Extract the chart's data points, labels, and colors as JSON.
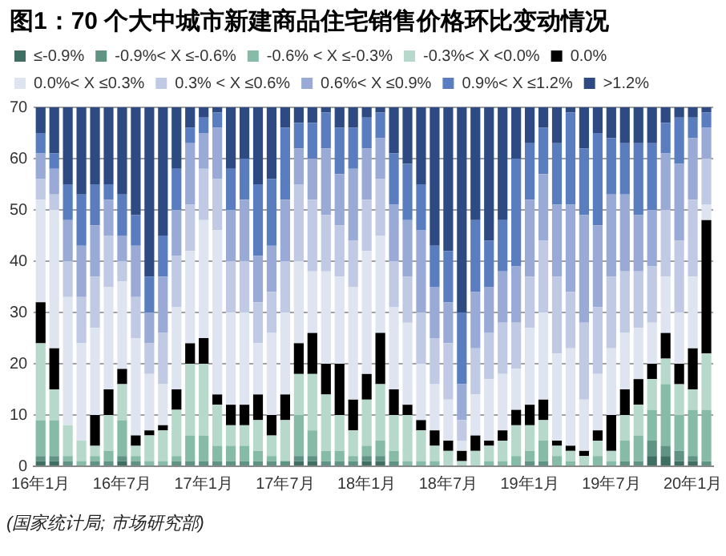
{
  "chart_data": {
    "type": "bar",
    "title": "图1：70 个大中城市新建商品住宅销售价格环比变动情况",
    "stacked": true,
    "grid": "y",
    "legend": "top",
    "ylim": [
      0,
      70
    ],
    "yticks": [
      0,
      10,
      20,
      30,
      40,
      50,
      60,
      70
    ],
    "categories": [
      "16年1月",
      null,
      null,
      null,
      null,
      null,
      "16年7月",
      null,
      null,
      null,
      null,
      null,
      "17年1月",
      null,
      null,
      null,
      null,
      null,
      "17年7月",
      null,
      null,
      null,
      null,
      null,
      "18年1月",
      null,
      null,
      null,
      null,
      null,
      "18年7月",
      null,
      null,
      null,
      null,
      null,
      "19年1月",
      null,
      null,
      null,
      null,
      null,
      "19年7月",
      null,
      null,
      null,
      null,
      null,
      "20年1月",
      null
    ],
    "series": [
      {
        "name": "≤-0.9%",
        "color": "#3f6e62",
        "values": [
          1,
          1,
          0,
          0,
          0,
          0,
          1,
          0,
          0,
          0,
          0,
          0,
          0,
          0,
          0,
          0,
          0,
          0,
          0,
          1,
          1,
          0,
          0,
          0,
          1,
          1,
          0,
          0,
          0,
          0,
          0,
          0,
          0,
          0,
          0,
          0,
          0,
          0,
          0,
          0,
          0,
          0,
          0,
          0,
          0,
          2,
          2,
          1,
          1,
          0
        ]
      },
      {
        "name": "-0.9%< X ≤-0.6%",
        "color": "#5f9484",
        "values": [
          1,
          1,
          1,
          0,
          1,
          1,
          1,
          1,
          0,
          0,
          1,
          1,
          1,
          1,
          1,
          1,
          1,
          1,
          1,
          1,
          1,
          1,
          1,
          1,
          1,
          1,
          1,
          0,
          0,
          0,
          0,
          0,
          0,
          0,
          0,
          0,
          1,
          1,
          0,
          0,
          0,
          0,
          0,
          1,
          1,
          3,
          2,
          2,
          1,
          1
        ]
      },
      {
        "name": "-0.6% < X ≤-0.3%",
        "color": "#86bba8",
        "values": [
          7,
          7,
          1,
          1,
          1,
          2,
          7,
          1,
          1,
          1,
          1,
          5,
          5,
          3,
          3,
          3,
          2,
          1,
          0,
          8,
          5,
          2,
          2,
          1,
          2,
          3,
          2,
          1,
          1,
          1,
          0,
          0,
          0,
          1,
          1,
          2,
          2,
          4,
          2,
          1,
          0,
          2,
          1,
          4,
          5,
          6,
          12,
          7,
          9,
          10
        ]
      },
      {
        "name": "-0.3%< X <0.0%",
        "color": "#b6d9cb",
        "values": [
          15,
          6,
          6,
          4,
          2,
          7,
          7,
          2,
          5,
          6,
          9,
          14,
          14,
          8,
          4,
          4,
          6,
          4,
          8,
          8,
          11,
          11,
          7,
          5,
          9,
          11,
          7,
          9,
          6,
          3,
          3,
          1,
          3,
          3,
          4,
          6,
          5,
          4,
          2,
          2,
          2,
          3,
          2,
          5,
          6,
          6,
          5,
          6,
          4,
          11
        ]
      },
      {
        "name": "0.0%",
        "color": "#000000",
        "values": [
          8,
          8,
          0,
          0,
          6,
          5,
          3,
          2,
          1,
          1,
          4,
          4,
          5,
          2,
          4,
          4,
          5,
          4,
          5,
          6,
          8,
          6,
          10,
          6,
          5,
          10,
          5,
          2,
          2,
          3,
          2,
          2,
          3,
          1,
          2,
          3,
          4,
          4,
          1,
          1,
          1,
          2,
          7,
          5,
          5,
          3,
          5,
          4,
          8,
          26
        ]
      },
      {
        "name": "0.0%< X ≤0.3%",
        "color": "#dfe4f1",
        "values": [
          20,
          27,
          25,
          19,
          17,
          20,
          17,
          19,
          11,
          8,
          16,
          18,
          23,
          32,
          18,
          18,
          10,
          16,
          16,
          16,
          12,
          18,
          17,
          22,
          24,
          19,
          16,
          16,
          11,
          9,
          8,
          2,
          8,
          12,
          11,
          8,
          15,
          17,
          17,
          19,
          10,
          11,
          13,
          11,
          10,
          8,
          11,
          10,
          14,
          3
        ]
      },
      {
        "name": "0.3% < X ≤0.6%",
        "color": "#c1cae4",
        "values": [
          4,
          3,
          7,
          9,
          10,
          10,
          4,
          8,
          6,
          10,
          10,
          9,
          10,
          10,
          10,
          10,
          8,
          8,
          10,
          15,
          14,
          11,
          10,
          9,
          10,
          11,
          9,
          9,
          10,
          9,
          11,
          4,
          9,
          9,
          10,
          9,
          10,
          14,
          15,
          11,
          15,
          13,
          14,
          12,
          11,
          11,
          13,
          14,
          15,
          9
        ]
      },
      {
        "name": "0.6%< X ≤0.9%",
        "color": "#98aad5",
        "values": [
          5,
          5,
          8,
          10,
          10,
          7,
          5,
          10,
          6,
          11,
          9,
          12,
          7,
          10,
          10,
          12,
          9,
          9,
          12,
          7,
          8,
          13,
          10,
          14,
          10,
          8,
          11,
          11,
          16,
          10,
          8,
          7,
          11,
          9,
          10,
          11,
          15,
          13,
          14,
          17,
          21,
          16,
          16,
          15,
          11,
          11,
          11,
          15,
          12,
          6
        ]
      },
      {
        "name": "0.9%< X ≤1.2%",
        "color": "#5a7dc0",
        "values": [
          4,
          3,
          7,
          10,
          8,
          3,
          8,
          6,
          7,
          8,
          8,
          3,
          3,
          3,
          8,
          8,
          14,
          13,
          14,
          5,
          7,
          7,
          9,
          8,
          6,
          5,
          10,
          11,
          9,
          8,
          10,
          14,
          14,
          9,
          10,
          21,
          11,
          9,
          12,
          18,
          13,
          18,
          11,
          10,
          14,
          13,
          6,
          9,
          4,
          3
        ]
      },
      {
        "name": ">1.2%",
        "color": "#2e4a82",
        "values": [
          5,
          9,
          15,
          17,
          15,
          15,
          17,
          21,
          33,
          25,
          12,
          4,
          2,
          1,
          12,
          10,
          15,
          14,
          4,
          3,
          3,
          1,
          4,
          4,
          2,
          1,
          9,
          11,
          15,
          27,
          28,
          40,
          22,
          26,
          22,
          10,
          7,
          4,
          7,
          1,
          8,
          5,
          6,
          7,
          7,
          7,
          3,
          2,
          2,
          1
        ]
      }
    ],
    "annotations": [
      "(国家统计局; 市场研究部)"
    ]
  }
}
